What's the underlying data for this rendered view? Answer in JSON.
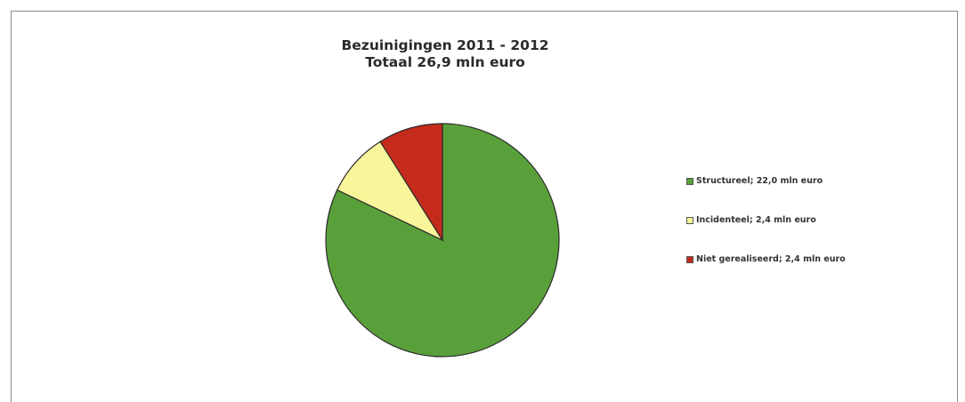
{
  "chart_data": {
    "type": "pie",
    "title": "Bezuinigingen 2011 - 2012",
    "subtitle": "Totaal 26,9 mln euro",
    "categories": [
      "Structureel",
      "Incidenteel",
      "Niet gerealiseerd"
    ],
    "values": [
      22.0,
      2.4,
      2.4
    ],
    "unit": "mln euro",
    "colors": [
      "#5aa03a",
      "#f8f59a",
      "#c42b1c"
    ],
    "legend_labels": [
      "Structureel; 22,0 mln euro",
      "Incidenteel; 2,4 mln euro",
      "Niet gerealiseerd; 2,4 mln euro"
    ],
    "legend_position": "right",
    "start_angle": "12 o'clock",
    "direction": "clockwise"
  }
}
